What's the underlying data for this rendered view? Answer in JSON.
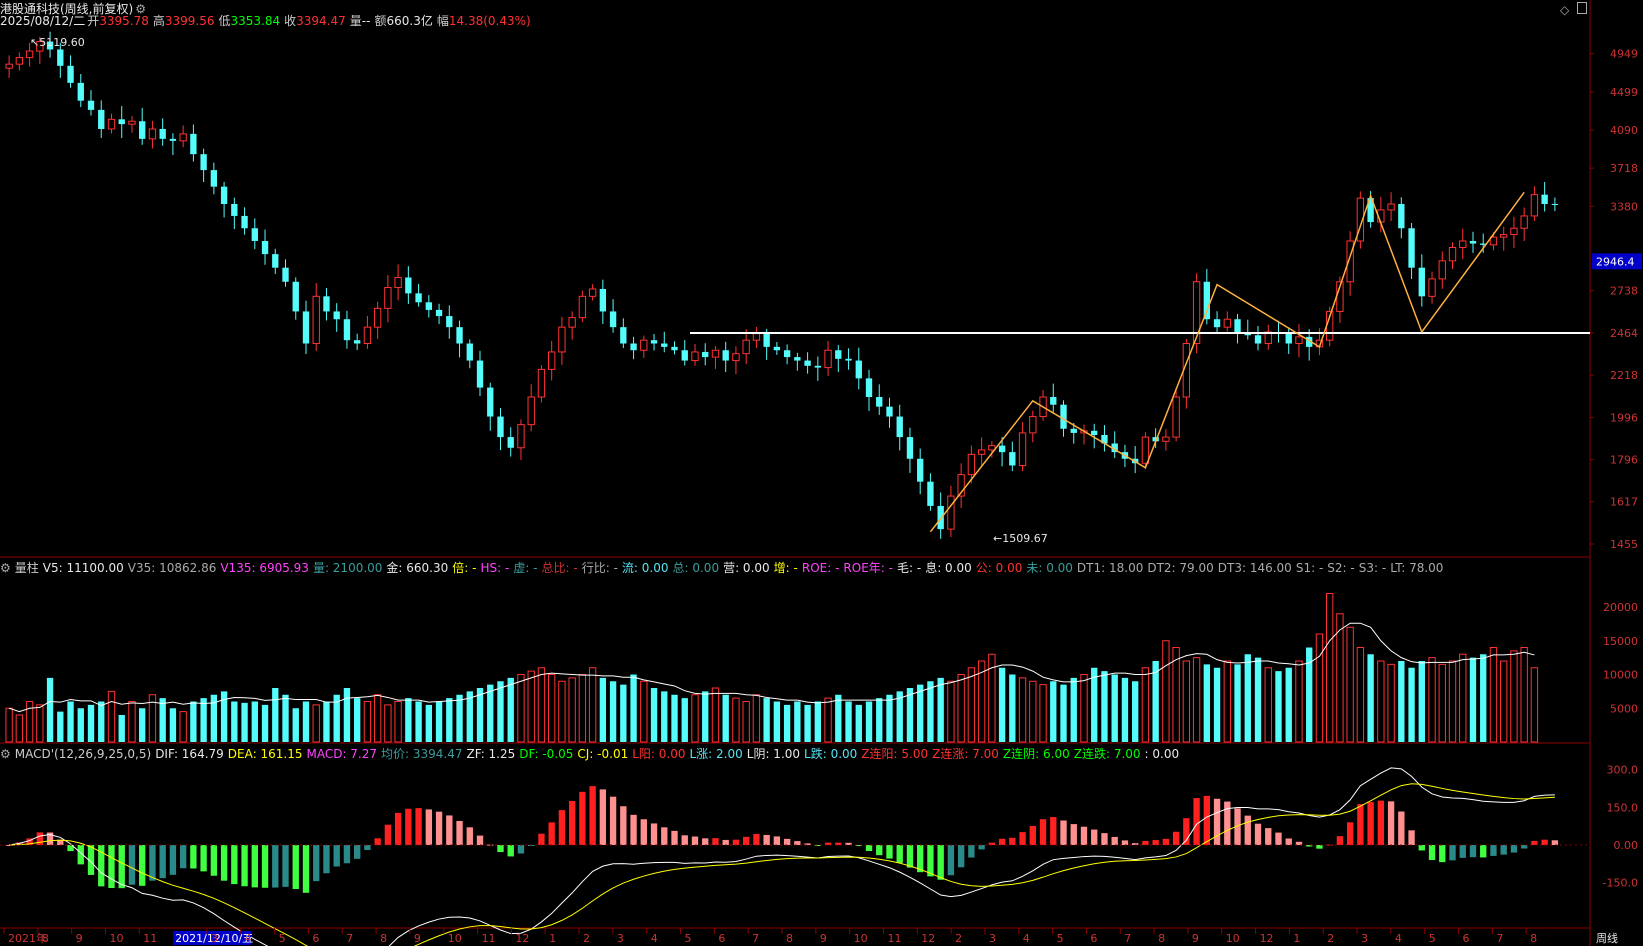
{
  "header": {
    "name": "港股通科技(周线,前复权)",
    "date": "2025/08/12/二",
    "open_label": "开",
    "open": "3395.78",
    "high_label": "高",
    "high": "3399.56",
    "low_label": "低",
    "low": "3353.84",
    "close_label": "收",
    "close": "3394.47",
    "vol_label": "量",
    "vol": "--",
    "amt_label": "额",
    "amt": "660.3亿",
    "chg_label": "幅",
    "chg": "14.38(0.43%)"
  },
  "price_axis": [
    "4949",
    "4499",
    "4090",
    "3718",
    "3380",
    "2946.4",
    "2738",
    "2464",
    "2218",
    "1996",
    "1796",
    "1617",
    "1455"
  ],
  "annotations": {
    "high_mark": "5119.60",
    "low_mark": "1509.67",
    "hline_value": "2464"
  },
  "volume_header": [
    {
      "t": "量柱",
      "c": "#cccccc"
    },
    {
      "t": "V5: 11100.00",
      "c": "#e8e8e8"
    },
    {
      "t": "V35: 10862.86",
      "c": "#aaaaaa"
    },
    {
      "t": "V135: 6905.93",
      "c": "#ff44ff"
    },
    {
      "t": "量: 2100.00",
      "c": "#3c9c9c"
    },
    {
      "t": "金: 660.30",
      "c": "#e8e8e8"
    },
    {
      "t": "倍: -",
      "c": "#ffff00"
    },
    {
      "t": "HS: -",
      "c": "#ff44ff"
    },
    {
      "t": "虚: -",
      "c": "#3c9c9c"
    },
    {
      "t": "总比: -",
      "c": "#cc3333"
    },
    {
      "t": "行比: -",
      "c": "#aaaaaa"
    },
    {
      "t": "流: 0.00",
      "c": "#54e4f4"
    },
    {
      "t": "总: 0.00",
      "c": "#3c9c9c"
    },
    {
      "t": "营: 0.00",
      "c": "#e8e8e8"
    },
    {
      "t": "增: -",
      "c": "#ffff00"
    },
    {
      "t": "ROE: -",
      "c": "#ff44ff"
    },
    {
      "t": "ROE年: -",
      "c": "#ff44ff"
    },
    {
      "t": "毛: -",
      "c": "#e8e8e8"
    },
    {
      "t": "息: 0.00",
      "c": "#e8e8e8"
    },
    {
      "t": "公: 0.00",
      "c": "#ff3232"
    },
    {
      "t": "未: 0.00",
      "c": "#3c9c9c"
    },
    {
      "t": "DT1: 18.00",
      "c": "#aaaaaa"
    },
    {
      "t": "DT2: 79.00",
      "c": "#aaaaaa"
    },
    {
      "t": "DT3: 146.00",
      "c": "#aaaaaa"
    },
    {
      "t": "S1: -",
      "c": "#aaaaaa"
    },
    {
      "t": "S2: -",
      "c": "#aaaaaa"
    },
    {
      "t": "S3: -",
      "c": "#aaaaaa"
    },
    {
      "t": "LT: 78.00",
      "c": "#aaaaaa"
    }
  ],
  "volume_axis": [
    "20000",
    "15000",
    "10000",
    "5000"
  ],
  "macd_header": [
    {
      "t": "MACD'(12,26,9,25,0,5)",
      "c": "#cccccc"
    },
    {
      "t": "DIF: 164.79",
      "c": "#e8e8e8"
    },
    {
      "t": "DEA: 161.15",
      "c": "#ffff00"
    },
    {
      "t": "MACD: 7.27",
      "c": "#ff44ff"
    },
    {
      "t": "均价: 3394.47",
      "c": "#3c9c9c"
    },
    {
      "t": "ZF: 1.25",
      "c": "#e8e8e8"
    },
    {
      "t": "DF: -0.05",
      "c": "#00ff00"
    },
    {
      "t": "CJ: -0.01",
      "c": "#ffff00"
    },
    {
      "t": "L阳: 0.00",
      "c": "#ff3232"
    },
    {
      "t": "L涨: 2.00",
      "c": "#54e4f4"
    },
    {
      "t": "L阴: 1.00",
      "c": "#e8e8e8"
    },
    {
      "t": "L跌: 0.00",
      "c": "#54e4f4"
    },
    {
      "t": "Z连阳: 5.00",
      "c": "#ff3232"
    },
    {
      "t": "Z连涨: 7.00",
      "c": "#ff3232"
    },
    {
      "t": "Z连阴: 6.00",
      "c": "#00ff00"
    },
    {
      "t": "Z连跌: 7.00",
      "c": "#00ff00"
    },
    {
      "t": ": 0.00",
      "c": "#e8e8e8"
    }
  ],
  "macd_axis": [
    "300.0",
    "150.0",
    "0.00",
    "-150.0"
  ],
  "time_axis": [
    "2021年",
    "8",
    "9",
    "10",
    "11",
    "2021/12/10/五",
    "3",
    "4",
    "5",
    "6",
    "7",
    "8",
    "9",
    "10",
    "11",
    "12",
    "1",
    "2",
    "3",
    "4",
    "5",
    "6",
    "7",
    "8",
    "9",
    "10",
    "11",
    "12",
    "2",
    "3",
    "4",
    "5",
    "6",
    "7",
    "8",
    "9",
    "10",
    "12",
    "1",
    "2",
    "3",
    "4",
    "5",
    "6",
    "7",
    "8"
  ],
  "period_label": "周线",
  "colors": {
    "up": "#ff3232",
    "down": "#54fcfc",
    "dif": "#ffffff",
    "dea": "#ffff00"
  },
  "chart_data": {
    "type": "candlestick",
    "period": "weekly",
    "ylim": [
      1455,
      5119.6
    ],
    "prices": [
      4820,
      4900,
      4980,
      5100,
      5000,
      4800,
      4600,
      4400,
      4300,
      4100,
      4200,
      4150,
      4180,
      4000,
      4100,
      4000,
      3980,
      4050,
      3850,
      3700,
      3550,
      3400,
      3300,
      3200,
      3100,
      3000,
      2900,
      2800,
      2600,
      2400,
      2700,
      2600,
      2550,
      2420,
      2400,
      2500,
      2620,
      2760,
      2830,
      2720,
      2660,
      2610,
      2570,
      2500,
      2400,
      2300,
      2150,
      2000,
      1900,
      1850,
      1960,
      2100,
      2250,
      2350,
      2500,
      2560,
      2700,
      2750,
      2600,
      2500,
      2400,
      2360,
      2420,
      2400,
      2380,
      2360,
      2300,
      2350,
      2320,
      2360,
      2300,
      2340,
      2420,
      2460,
      2380,
      2360,
      2320,
      2300,
      2270,
      2260,
      2360,
      2310,
      2300,
      2200,
      2100,
      2050,
      2000,
      1900,
      1800,
      1700,
      1600,
      1510,
      1640,
      1730,
      1820,
      1840,
      1860,
      1830,
      1770,
      1920,
      2000,
      2100,
      2060,
      1940,
      1920,
      1930,
      1910,
      1870,
      1830,
      1800,
      1780,
      1900,
      1880,
      1900,
      2100,
      2400,
      2800,
      2550,
      2500,
      2550,
      2470,
      2450,
      2400,
      2470,
      2460,
      2400,
      2440,
      2380,
      2420,
      2600,
      2800,
      3100,
      3450,
      3250,
      3350,
      3400,
      3200,
      2900,
      2700,
      2820,
      2950,
      3050,
      3100,
      3080,
      3070,
      3130,
      3150,
      3200,
      3300,
      3480,
      3400,
      3394.47
    ],
    "volume_estimate": [
      5000,
      4000,
      6000,
      5500,
      9500,
      4500,
      6000,
      5000,
      5500,
      6000,
      7500,
      4000,
      6000,
      5000,
      7000,
      6500,
      5000,
      4500,
      6000,
      6500,
      7000,
      7500,
      6000,
      5800,
      6000,
      5500,
      8000,
      7000,
      5000,
      6000,
      5500,
      6000,
      7000,
      8000,
      6500,
      6000,
      7000,
      5500,
      6000,
      6500,
      6000,
      5500,
      6000,
      6500,
      7000,
      7500,
      8000,
      8500,
      9000,
      9500,
      10000,
      10500,
      11000,
      10000,
      9000,
      9500,
      10000,
      11000,
      9500,
      9000,
      8500,
      10000,
      9000,
      8000,
      7500,
      7000,
      6500,
      7000,
      7500,
      8000,
      7000,
      6500,
      6000,
      7000,
      6500,
      6000,
      5500,
      6000,
      5500,
      6000,
      6500,
      7000,
      6000,
      5500,
      6000,
      6500,
      7000,
      7500,
      8000,
      8500,
      9000,
      9500,
      9000,
      10000,
      11000,
      12000,
      13000,
      11000,
      10000,
      9500,
      9000,
      8500,
      9000,
      8500,
      9500,
      10000,
      11000,
      10500,
      10000,
      9500,
      9000,
      11000,
      12000,
      15000,
      14000,
      12000,
      12500,
      11500,
      11000,
      12000,
      11500,
      13000,
      12500,
      11000,
      10500,
      11000,
      12000,
      14000,
      16000,
      22000,
      19000,
      17000,
      14000,
      13000,
      12000,
      11500,
      12000,
      11000,
      12000,
      12500,
      11500,
      12000,
      13000,
      12500,
      13000,
      14000,
      12000,
      13500,
      14000,
      11000
    ],
    "volume_axis_ticks": [
      20000,
      15000,
      10000,
      5000
    ],
    "macd_axis_ticks": [
      300,
      150,
      0,
      -150
    ],
    "dif": 164.79,
    "dea": 161.15,
    "macd": 7.27
  }
}
